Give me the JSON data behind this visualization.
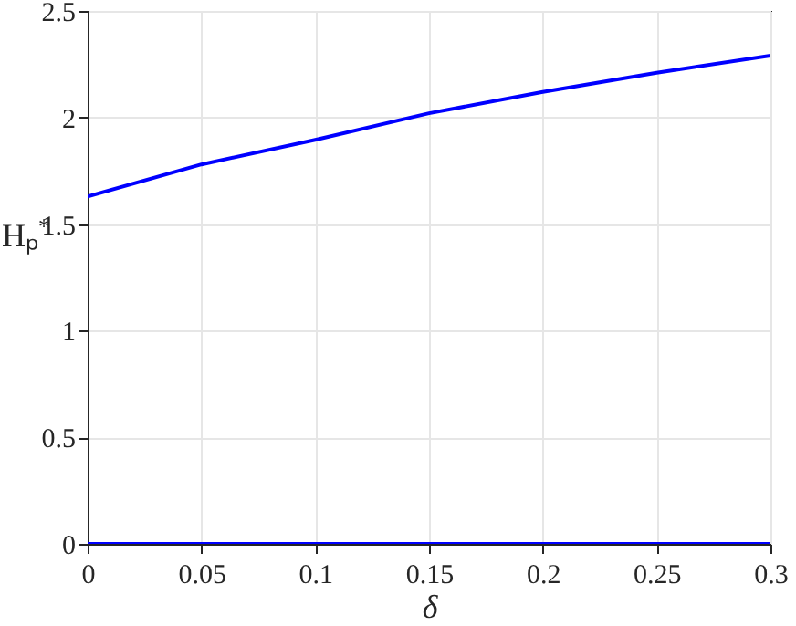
{
  "chart_data": {
    "type": "line",
    "xlabel": "δ",
    "ylabel": "Hₚ$^{*}$",
    "x": [
      0,
      0.05,
      0.1,
      0.15,
      0.2,
      0.25,
      0.3
    ],
    "series": [
      {
        "color": "#0000ff",
        "values": [
          1.63,
          1.78,
          1.895,
          2.02,
          2.12,
          2.21,
          2.29
        ]
      },
      {
        "color": "#0000ff",
        "values": [
          0,
          0,
          0,
          0,
          0,
          0,
          0
        ]
      }
    ],
    "xlim": [
      0,
      0.3
    ],
    "xticks": [
      0,
      0.05,
      0.1,
      0.15,
      0.2,
      0.25,
      0.3
    ],
    "ylim": [
      0,
      2.5
    ],
    "yticks": [
      0,
      0.5,
      1,
      1.5,
      2,
      2.5
    ],
    "grid": true,
    "marker": "none",
    "line_style": "solid"
  }
}
